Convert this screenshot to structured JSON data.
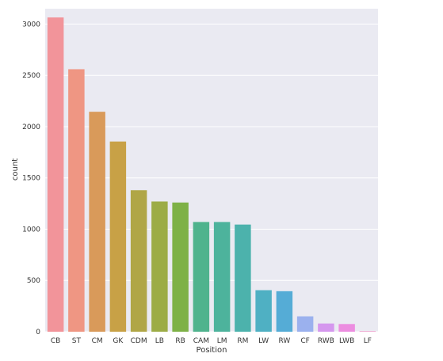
{
  "chart_data": {
    "type": "bar",
    "xlabel": "Position",
    "ylabel": "count",
    "categories": [
      "CB",
      "ST",
      "CM",
      "GK",
      "CDM",
      "LB",
      "RB",
      "CAM",
      "LM",
      "RM",
      "LW",
      "RW",
      "CF",
      "RWB",
      "LWB",
      "LF"
    ],
    "values": [
      3065,
      2560,
      2145,
      1855,
      1380,
      1270,
      1260,
      1070,
      1070,
      1045,
      405,
      395,
      150,
      80,
      75,
      5
    ],
    "ylim": [
      0,
      3150
    ],
    "yticks": [
      0,
      500,
      1000,
      1500,
      2000,
      2500,
      3000
    ],
    "grid": true,
    "colors": [
      "#f2949a",
      "#ef9683",
      "#d99a5a",
      "#c8a146",
      "#b0a646",
      "#9cac46",
      "#7eb146",
      "#4fb38d",
      "#4db39c",
      "#4cb2ac",
      "#4fb0c3",
      "#55acd6",
      "#9bb1ee",
      "#d597ee",
      "#ec8de0",
      "#f18fc4"
    ],
    "background": "#eaeaf2",
    "gridColor": "#ffffff"
  }
}
